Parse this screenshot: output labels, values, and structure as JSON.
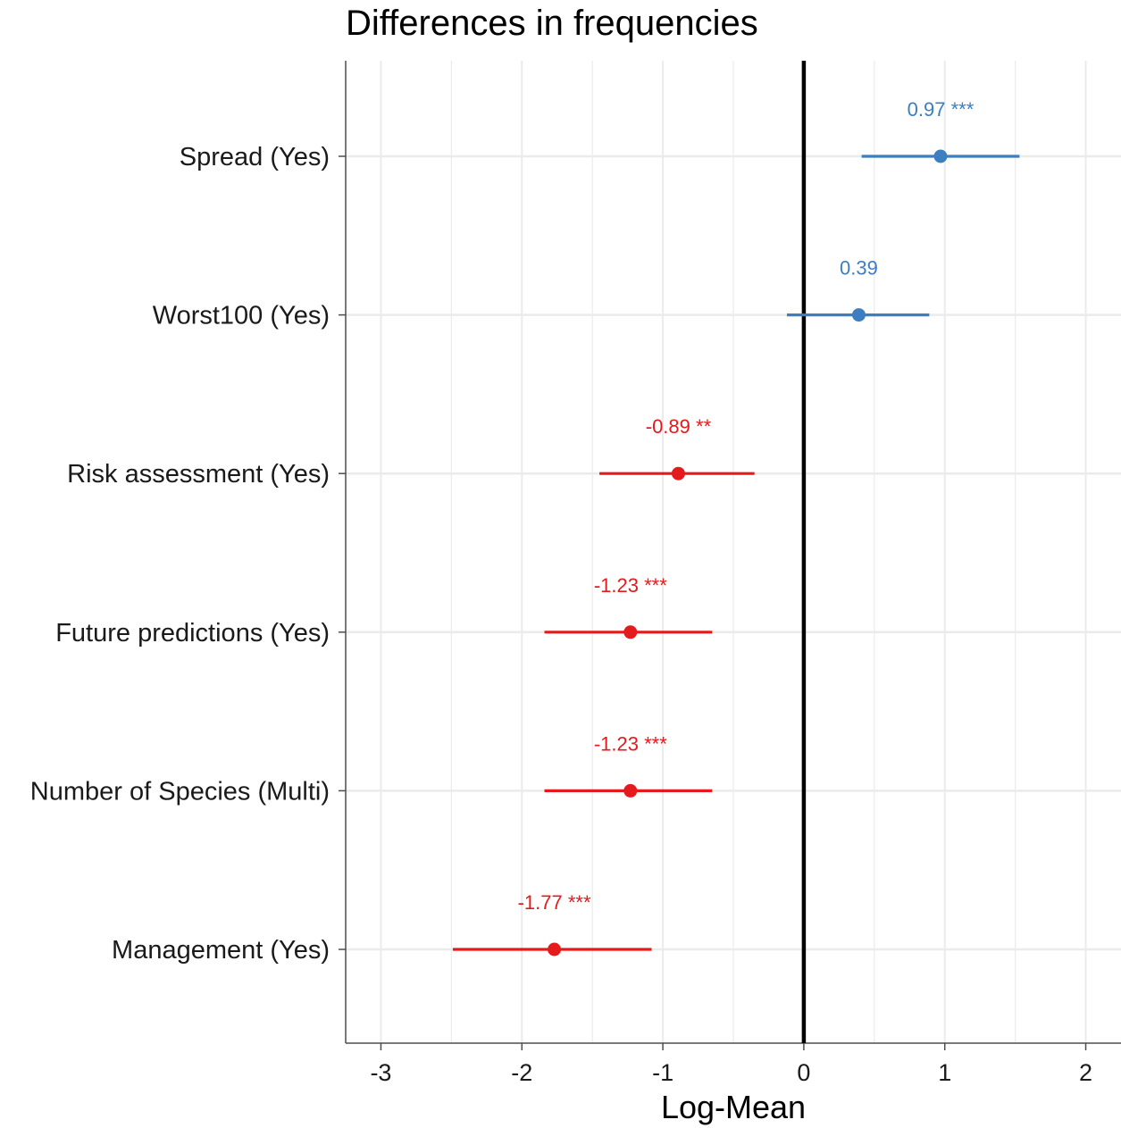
{
  "chart_data": {
    "type": "scatter",
    "subtype": "coefficient-plot",
    "title": "Differences in frequencies",
    "xlabel": "Log-Mean",
    "ylabel": "",
    "xlim": [
      -3.25,
      2.25
    ],
    "xticks": [
      -3,
      -2,
      -1,
      0,
      1,
      2
    ],
    "grid": true,
    "legend": "none",
    "reference_line_x": 0,
    "colors": {
      "positive": "#3C7EBF",
      "negative": "#E41A1C",
      "reference": "#000000",
      "grid": "#EBEBEB",
      "axis": "#4D4D4D"
    },
    "categories": [
      "Spread (Yes)",
      "Worst100 (Yes)",
      "Risk assessment (Yes)",
      "Future predictions (Yes)",
      "Number of Species (Multi)",
      "Management (Yes)"
    ],
    "points": [
      {
        "category": "Spread (Yes)",
        "estimate": 0.97,
        "lower": 0.41,
        "upper": 1.53,
        "label": "0.97 ***",
        "sign": "positive"
      },
      {
        "category": "Worst100 (Yes)",
        "estimate": 0.39,
        "lower": -0.12,
        "upper": 0.89,
        "label": "0.39",
        "sign": "positive"
      },
      {
        "category": "Risk assessment (Yes)",
        "estimate": -0.89,
        "lower": -1.45,
        "upper": -0.35,
        "label": "-0.89 **",
        "sign": "negative"
      },
      {
        "category": "Future predictions (Yes)",
        "estimate": -1.23,
        "lower": -1.84,
        "upper": -0.65,
        "label": "-1.23 ***",
        "sign": "negative"
      },
      {
        "category": "Number of Species (Multi)",
        "estimate": -1.23,
        "lower": -1.84,
        "upper": -0.65,
        "label": "-1.23 ***",
        "sign": "negative"
      },
      {
        "category": "Management (Yes)",
        "estimate": -1.77,
        "lower": -2.49,
        "upper": -1.08,
        "label": "-1.77 ***",
        "sign": "negative"
      }
    ]
  }
}
